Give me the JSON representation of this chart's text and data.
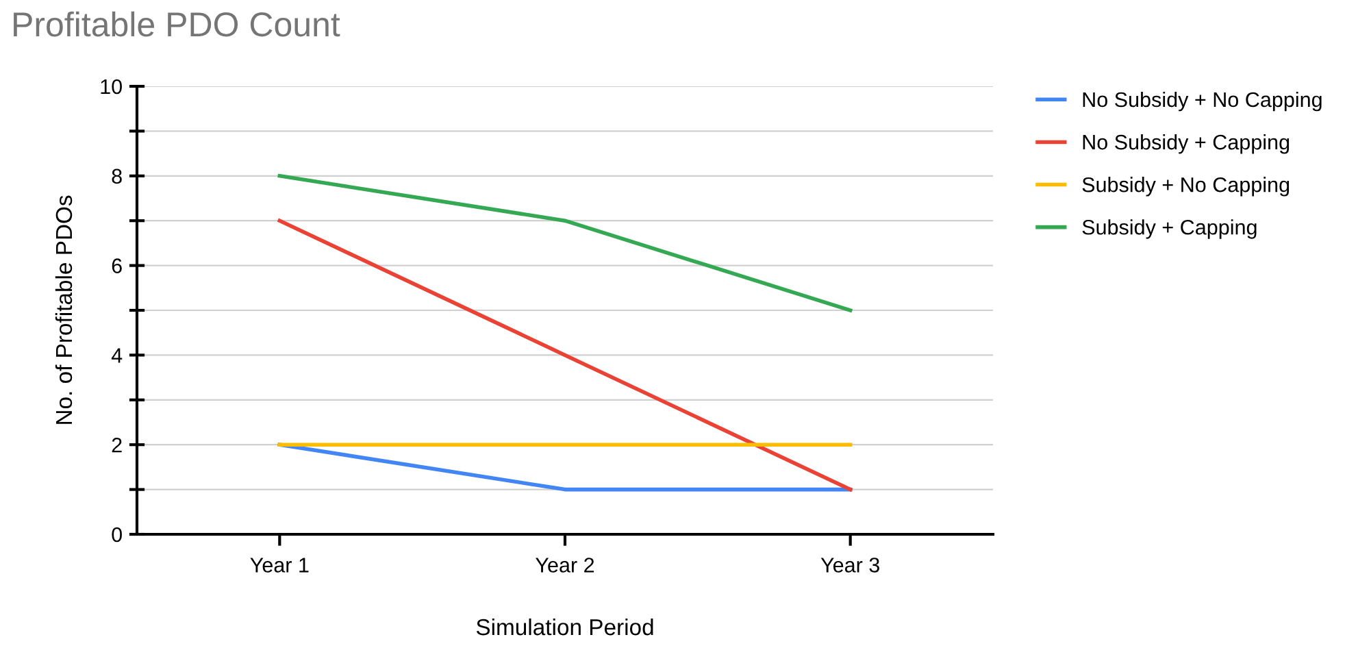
{
  "chart_data": {
    "type": "line",
    "title": "Profitable PDO Count",
    "xlabel": "Simulation Period",
    "ylabel": "No. of Profitable PDOs",
    "categories": [
      "Year 1",
      "Year 2",
      "Year 3"
    ],
    "series": [
      {
        "name": "No Subsidy + No Capping",
        "color": "#4285f4",
        "values": [
          2,
          1,
          1
        ]
      },
      {
        "name": "No Subsidy + Capping",
        "color": "#ea4335",
        "values": [
          7,
          4,
          1
        ]
      },
      {
        "name": "Subsidy + No Capping",
        "color": "#fbbc04",
        "values": [
          2,
          2,
          2
        ]
      },
      {
        "name": "Subsidy + Capping",
        "color": "#34a853",
        "values": [
          8,
          7,
          5
        ]
      }
    ],
    "ylim": [
      0,
      10
    ],
    "yticks": [
      0,
      {
        "value": 1,
        "label": null
      },
      2,
      {
        "value": 3,
        "label": null
      },
      4,
      {
        "value": 5,
        "label": null
      },
      6,
      {
        "value": 7,
        "label": null
      },
      8,
      {
        "value": 9,
        "label": null
      },
      10
    ],
    "grid": "y",
    "legend": "right",
    "marker": "none",
    "line_style": "solid"
  }
}
